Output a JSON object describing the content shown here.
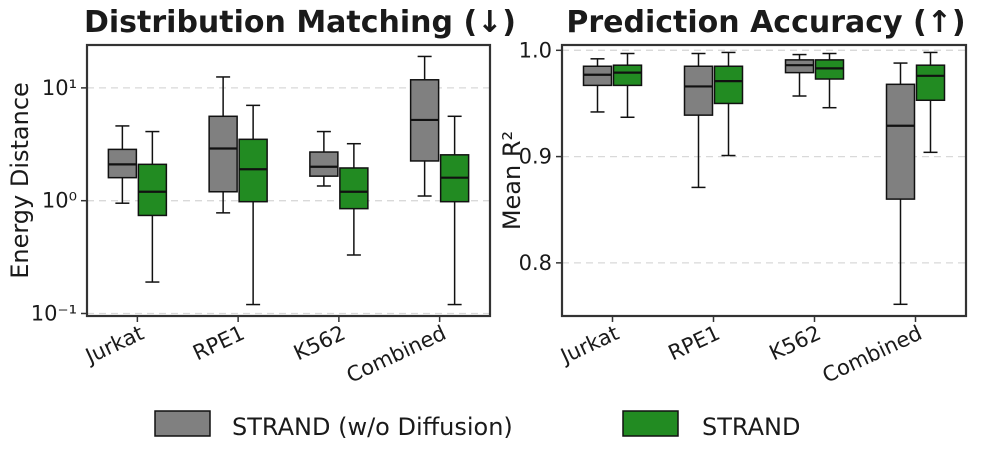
{
  "colors": {
    "without_diffusion": "#808080",
    "strand": "#228b22",
    "median": "#111111",
    "grid": "#d9d9d9",
    "axis": "#333333"
  },
  "legend": {
    "placement": "bottom-center",
    "entries": [
      "STRAND (w/o Diffusion)",
      "STRAND"
    ]
  },
  "chart_data": [
    {
      "type": "box",
      "title": "Distribution Matching (↓)",
      "xlabel": "",
      "ylabel": "Energy Distance",
      "yscale": "log",
      "ylim": [
        0.095,
        24
      ],
      "yticks": [
        0.1,
        1,
        10
      ],
      "ytick_labels": [
        "10⁻¹",
        "10⁰",
        "10¹"
      ],
      "grid": "y-dashed",
      "categories": [
        "Jurkat",
        "RPE1",
        "K562",
        "Combined"
      ],
      "series": [
        {
          "name": "STRAND (w/o Diffusion)",
          "boxes": [
            {
              "whisker_low": 0.95,
              "q1": 1.6,
              "median": 2.1,
              "q3": 2.85,
              "whisker_high": 4.6
            },
            {
              "whisker_low": 0.78,
              "q1": 1.2,
              "median": 2.9,
              "q3": 5.6,
              "whisker_high": 12.5
            },
            {
              "whisker_low": 1.35,
              "q1": 1.65,
              "median": 2.0,
              "q3": 2.7,
              "whisker_high": 4.1
            },
            {
              "whisker_low": 1.1,
              "q1": 2.25,
              "median": 5.2,
              "q3": 11.8,
              "whisker_high": 19.0
            }
          ]
        },
        {
          "name": "STRAND",
          "boxes": [
            {
              "whisker_low": 0.19,
              "q1": 0.74,
              "median": 1.2,
              "q3": 2.1,
              "whisker_high": 4.1
            },
            {
              "whisker_low": 0.12,
              "q1": 0.98,
              "median": 1.9,
              "q3": 3.5,
              "whisker_high": 7.0
            },
            {
              "whisker_low": 0.33,
              "q1": 0.85,
              "median": 1.2,
              "q3": 1.95,
              "whisker_high": 3.2
            },
            {
              "whisker_low": 0.12,
              "q1": 0.98,
              "median": 1.6,
              "q3": 2.55,
              "whisker_high": 5.6
            }
          ]
        }
      ]
    },
    {
      "type": "box",
      "title": "Prediction Accuracy (↑)",
      "xlabel": "",
      "ylabel": "Mean R²",
      "yscale": "linear",
      "ylim": [
        0.75,
        1.005
      ],
      "yticks": [
        0.8,
        0.9,
        1.0
      ],
      "ytick_labels": [
        "0.8",
        "0.9",
        "1.0"
      ],
      "grid": "y-dashed",
      "categories": [
        "Jurkat",
        "RPE1",
        "K562",
        "Combined"
      ],
      "series": [
        {
          "name": "STRAND (w/o Diffusion)",
          "boxes": [
            {
              "whisker_low": 0.942,
              "q1": 0.967,
              "median": 0.977,
              "q3": 0.985,
              "whisker_high": 0.992
            },
            {
              "whisker_low": 0.871,
              "q1": 0.939,
              "median": 0.966,
              "q3": 0.985,
              "whisker_high": 0.997
            },
            {
              "whisker_low": 0.957,
              "q1": 0.979,
              "median": 0.986,
              "q3": 0.991,
              "whisker_high": 0.996
            },
            {
              "whisker_low": 0.761,
              "q1": 0.86,
              "median": 0.929,
              "q3": 0.968,
              "whisker_high": 0.988
            }
          ]
        },
        {
          "name": "STRAND",
          "boxes": [
            {
              "whisker_low": 0.937,
              "q1": 0.967,
              "median": 0.979,
              "q3": 0.986,
              "whisker_high": 0.997
            },
            {
              "whisker_low": 0.901,
              "q1": 0.95,
              "median": 0.971,
              "q3": 0.985,
              "whisker_high": 0.998
            },
            {
              "whisker_low": 0.946,
              "q1": 0.973,
              "median": 0.983,
              "q3": 0.991,
              "whisker_high": 0.997
            },
            {
              "whisker_low": 0.904,
              "q1": 0.953,
              "median": 0.976,
              "q3": 0.986,
              "whisker_high": 0.998
            }
          ]
        }
      ]
    }
  ]
}
